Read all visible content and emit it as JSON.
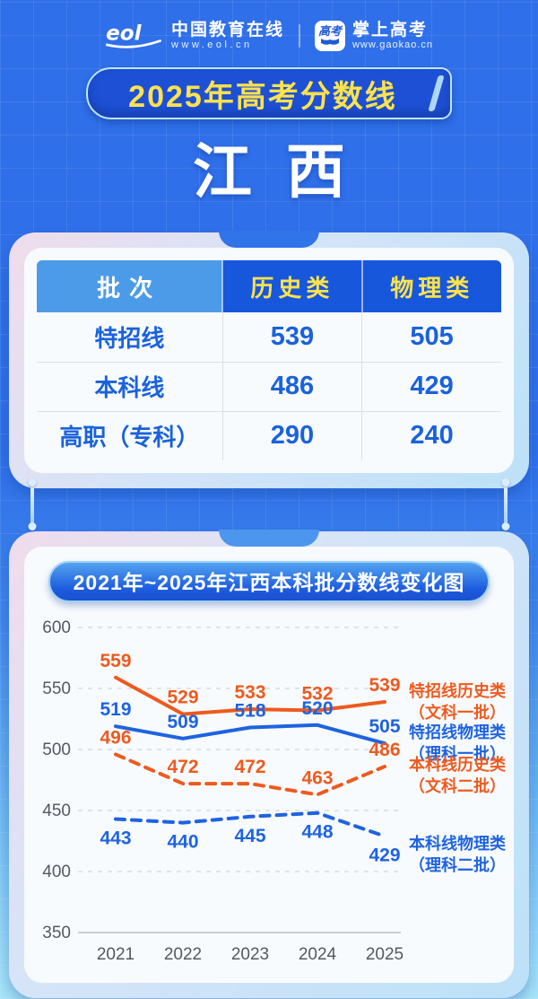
{
  "header": {
    "eol_name": "中国教育在线",
    "eol_url": "www.eol.cn",
    "gaokao_name": "掌上高考",
    "gaokao_url": "www.gaokao.cn",
    "gaokao_icon_text": "高考"
  },
  "banner": {
    "title": "2025年高考分数线"
  },
  "province": "江西",
  "table": {
    "columns": [
      "批次",
      "历史类",
      "物理类"
    ],
    "rows": [
      {
        "label": "特招线",
        "values": [
          "539",
          "505"
        ]
      },
      {
        "label": "本科线",
        "values": [
          "486",
          "429"
        ]
      },
      {
        "label": "高职（专科）",
        "values": [
          "290",
          "240"
        ]
      }
    ]
  },
  "chart_data": {
    "type": "line",
    "title": "2021年~2025年江西本科批分数线变化图",
    "categories": [
      "2021",
      "2022",
      "2023",
      "2024",
      "2025"
    ],
    "series": [
      {
        "name": "特招线历史类",
        "subname": "（文科一批）",
        "values": [
          559,
          529,
          533,
          532,
          539
        ],
        "color": "#EE5A1E",
        "dashed": false,
        "label_position": "above"
      },
      {
        "name": "特招线物理类",
        "subname": "（理科一批）",
        "values": [
          519,
          509,
          518,
          520,
          505
        ],
        "color": "#1E63E0",
        "dashed": false,
        "label_position": "above"
      },
      {
        "name": "本科线历史类",
        "subname": "（文科二批）",
        "values": [
          496,
          472,
          472,
          463,
          486
        ],
        "color": "#EE5A1E",
        "dashed": true,
        "label_position": "above"
      },
      {
        "name": "本科线物理类",
        "subname": "（理科二批）",
        "values": [
          443,
          440,
          445,
          448,
          429
        ],
        "color": "#1E63E0",
        "dashed": true,
        "label_position": "below"
      }
    ],
    "ylim": [
      350,
      600
    ],
    "yticks": [
      600,
      550,
      500,
      450,
      400,
      350
    ],
    "grid": "horizontal-dashed",
    "legend_position": "right"
  },
  "colors": {
    "background_blue": "#2F6FE9",
    "ribbon_blue": "#1D50D4",
    "banner_yellow": "#FFE24D",
    "table_header_light": "#4B9BE8",
    "table_header_dark": "#1757DC",
    "table_text_blue": "#1A62DB",
    "series_orange": "#EE5A1E",
    "series_blue": "#1E63E0"
  }
}
